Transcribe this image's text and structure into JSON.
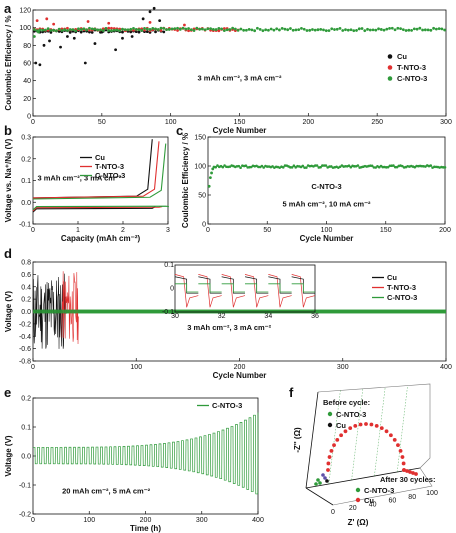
{
  "colors": {
    "cu": "#111111",
    "tnto": "#e03030",
    "cnto": "#2f9a3a"
  },
  "chart_data": [
    {
      "panel": "a",
      "type": "scatter",
      "xlabel": "Cycle Number",
      "ylabel": "Coulombic Efficiency / %",
      "xlim": [
        0,
        300
      ],
      "ylim": [
        0,
        120
      ],
      "xticks": [
        0,
        50,
        100,
        150,
        200,
        250,
        300
      ],
      "yticks": [
        0,
        20,
        40,
        60,
        80,
        100,
        120
      ],
      "annotation": "3 mAh cm⁻², 3 mA cm⁻²",
      "legend_position": "right",
      "series": [
        {
          "name": "Cu",
          "color": "#111111",
          "x_end": 95,
          "base": 96,
          "outliers": [
            [
              2,
              60
            ],
            [
              5,
              58
            ],
            [
              8,
              80
            ],
            [
              12,
              85
            ],
            [
              20,
              78
            ],
            [
              25,
              90
            ],
            [
              30,
              88
            ],
            [
              38,
              60
            ],
            [
              45,
              82
            ],
            [
              50,
              95
            ],
            [
              60,
              75
            ],
            [
              65,
              88
            ],
            [
              72,
              90
            ],
            [
              80,
              110
            ],
            [
              85,
              118
            ],
            [
              88,
              122
            ],
            [
              92,
              108
            ]
          ]
        },
        {
          "name": "T-NTO-3",
          "color": "#e03030",
          "x_end": 150,
          "base": 98,
          "outliers": [
            [
              3,
              108
            ],
            [
              10,
              110
            ],
            [
              15,
              104
            ],
            [
              40,
              107
            ],
            [
              55,
              105
            ],
            [
              85,
              106
            ],
            [
              110,
              103
            ]
          ]
        },
        {
          "name": "C-NTO-3",
          "color": "#2f9a3a",
          "x_end": 300,
          "base": 98,
          "outliers": [
            [
              1,
              90
            ],
            [
              4,
              95
            ]
          ]
        }
      ]
    },
    {
      "panel": "b",
      "type": "line",
      "xlabel": "Capacity (mAh cm⁻²)",
      "ylabel": "Voltage vs. Na⁺/Na (V)",
      "xlim": [
        0,
        3
      ],
      "ylim": [
        -0.1,
        0.3
      ],
      "xticks": [
        0,
        1,
        2,
        3
      ],
      "yticks": [
        -0.1,
        0.0,
        0.1,
        0.2,
        0.3
      ],
      "annotation": "3 mAh cm⁻², 3 mA cm⁻²",
      "legend_position": "top-right",
      "series": [
        {
          "name": "Cu",
          "color": "#111111",
          "discharge": -0.03,
          "charge": 0.02,
          "end": 2.6
        },
        {
          "name": "T-NTO-3",
          "color": "#e03030",
          "discharge": -0.025,
          "charge": 0.02,
          "end": 2.75
        },
        {
          "name": "C-NTO-3",
          "color": "#2f9a3a",
          "discharge": -0.02,
          "charge": 0.015,
          "end": 2.9
        }
      ]
    },
    {
      "panel": "c",
      "type": "scatter",
      "xlabel": "Cycle Number",
      "ylabel": "Coulombic Efficiency / %",
      "xlim": [
        0,
        200
      ],
      "ylim": [
        0,
        150
      ],
      "xticks": [
        0,
        50,
        100,
        150,
        200
      ],
      "yticks": [
        0,
        50,
        100,
        150
      ],
      "annotation_title": "C-NTO-3",
      "annotation": "5 mAh cm⁻², 10 mA cm⁻²",
      "series": [
        {
          "name": "C-NTO-3",
          "color": "#2f9a3a",
          "x_end": 200,
          "base": 99,
          "outliers": [
            [
              1,
              65
            ],
            [
              2,
              80
            ],
            [
              3,
              88
            ],
            [
              4,
              95
            ]
          ]
        }
      ]
    },
    {
      "panel": "d",
      "type": "line",
      "xlabel": "Cycle Number",
      "ylabel": "Voltage (V)",
      "xlim": [
        0,
        400
      ],
      "ylim": [
        -0.8,
        0.8
      ],
      "xticks": [
        0,
        100,
        200,
        300,
        400
      ],
      "yticks": [
        -0.8,
        -0.6,
        -0.4,
        -0.2,
        0.0,
        0.2,
        0.4,
        0.6,
        0.8
      ],
      "annotation": "3 mAh cm⁻², 3 mA cm⁻²",
      "legend_position": "right",
      "inset": {
        "xticks": [
          30,
          32,
          34,
          36
        ],
        "yticks": [
          -0.1,
          0.0,
          0.1
        ]
      },
      "series": [
        {
          "name": "Cu",
          "color": "#111111",
          "x_end": 32,
          "amp": 0.6
        },
        {
          "name": "T-NTO-3",
          "color": "#e03030",
          "x_end": 44,
          "amp": 0.6
        },
        {
          "name": "C-NTO-3",
          "color": "#2f9a3a",
          "x_end": 400,
          "amp": 0.02
        }
      ]
    },
    {
      "panel": "e",
      "type": "line",
      "xlabel": "Time (h)",
      "ylabel": "Voltage (V)",
      "xlim": [
        0,
        400
      ],
      "ylim": [
        -0.2,
        0.2
      ],
      "xticks": [
        0,
        100,
        200,
        300,
        400
      ],
      "yticks": [
        -0.2,
        -0.1,
        0.0,
        0.1,
        0.2
      ],
      "annotation": "20 mAh cm⁻², 5 mA cm⁻²",
      "legend_position": "top-right",
      "series": [
        {
          "name": "C-NTO-3",
          "color": "#2f9a3a",
          "period": 8,
          "amp_start": 0.03,
          "amp_end": 0.15
        }
      ]
    },
    {
      "panel": "f",
      "type": "scatter",
      "xlabel": "Z' (Ω)",
      "ylabel": "-Z'' (Ω)",
      "xticks": [
        0,
        20,
        40,
        60,
        80,
        100
      ],
      "before_label": "Before cycle:",
      "after_label": "After 30 cycles:",
      "series": [
        {
          "name": "C-NTO-3",
          "color": "#2f9a3a"
        },
        {
          "name": "Cu",
          "color": "#111111"
        },
        {
          "name": "C-NTO-3",
          "color": "#2f9a3a"
        },
        {
          "name": "Cu",
          "color": "#e03030"
        }
      ]
    }
  ],
  "panel_labels": [
    "a",
    "b",
    "c",
    "d",
    "e",
    "f"
  ]
}
